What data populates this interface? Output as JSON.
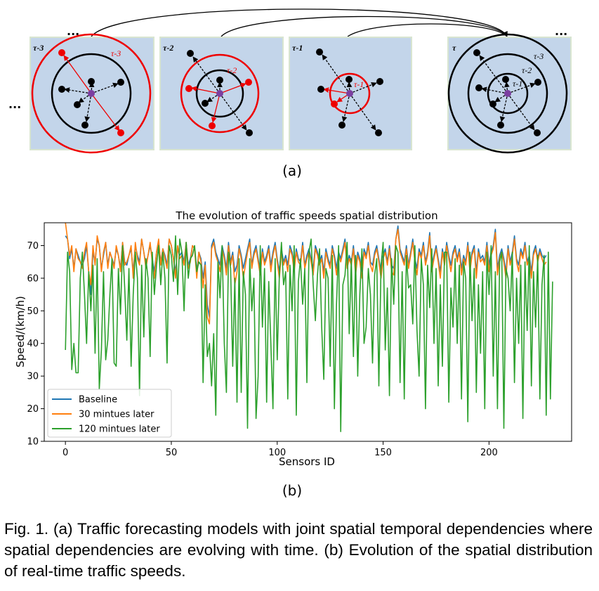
{
  "figure_a": {
    "panel_labels": [
      "τ-3",
      "τ-2",
      "τ-1",
      "τ"
    ],
    "circle_labels": [
      "τ-3",
      "τ-2",
      "τ-1"
    ],
    "ellipsis": "...",
    "sublabel": "(a)"
  },
  "chart_data": {
    "type": "line",
    "title": "The evolution of traffic speeds spatial distribution",
    "xlabel": "Sensors ID",
    "ylabel": "Speed/(km/h)",
    "xlim": [
      -10,
      239
    ],
    "ylim": [
      10,
      77
    ],
    "xticks": [
      0,
      50,
      100,
      150,
      200
    ],
    "yticks": [
      10,
      20,
      30,
      40,
      50,
      60,
      70
    ],
    "legend_position": "lower-left",
    "grid": false,
    "series": [
      {
        "name": "Baseline",
        "color": "#1f77b4",
        "values": [
          73,
          72,
          66,
          69,
          63,
          69,
          67,
          65,
          64,
          66,
          70,
          62,
          55,
          68,
          65,
          72,
          70,
          63,
          67,
          71,
          64,
          68,
          66,
          64,
          69,
          67,
          63,
          71,
          65,
          64,
          67,
          69,
          62,
          70,
          67,
          65,
          72,
          68,
          64,
          67,
          70,
          66,
          62,
          68,
          71,
          65,
          69,
          67,
          64,
          72,
          70,
          66,
          62,
          69,
          67,
          68,
          65,
          71,
          64,
          66,
          70,
          69,
          62,
          68,
          66,
          60,
          65,
          52,
          48,
          70,
          72,
          68,
          66,
          64,
          70,
          67,
          63,
          71,
          65,
          68,
          62,
          64,
          70,
          67,
          63,
          66,
          69,
          72,
          64,
          68,
          70,
          66,
          62,
          69,
          65,
          67,
          70,
          64,
          68,
          71,
          66,
          62,
          69,
          65,
          67,
          64,
          70,
          68,
          63,
          69,
          66,
          65,
          71,
          64,
          67,
          69,
          66,
          63,
          70,
          68,
          65,
          67,
          62,
          69,
          66,
          64,
          70,
          67,
          63,
          68,
          66,
          69,
          72,
          64,
          67,
          65,
          70,
          63,
          68,
          66,
          62,
          69,
          67,
          71,
          65,
          64,
          68,
          70,
          66,
          62,
          67,
          69,
          65,
          70,
          64,
          63,
          72,
          76,
          69,
          67,
          65,
          70,
          64,
          68,
          72,
          66,
          63,
          69,
          67,
          71,
          65,
          68,
          74,
          64,
          67,
          70,
          66,
          62,
          69,
          65,
          71,
          67,
          64,
          68,
          70,
          66,
          69,
          63,
          67,
          65,
          71,
          64,
          68,
          70,
          62,
          69,
          66,
          67,
          65,
          71,
          64,
          68,
          70,
          75,
          63,
          67,
          69,
          66,
          62,
          70,
          65,
          68,
          73,
          66,
          64,
          69,
          67,
          71,
          65,
          67,
          62,
          68,
          70,
          66,
          69,
          67,
          66,
          67
        ]
      },
      {
        "name": "30 mintues later",
        "color": "#ff7f0e",
        "values": [
          77,
          72,
          67,
          70,
          62,
          69,
          66,
          65,
          63,
          68,
          71,
          62,
          58,
          70,
          64,
          73,
          70,
          62,
          68,
          71,
          63,
          68,
          66,
          63,
          70,
          67,
          62,
          71,
          64,
          65,
          67,
          70,
          60,
          71,
          66,
          64,
          72,
          68,
          63,
          67,
          71,
          65,
          60,
          68,
          72,
          64,
          69,
          66,
          63,
          72,
          70,
          66,
          60,
          70,
          66,
          67,
          64,
          71,
          63,
          65,
          70,
          69,
          60,
          68,
          65,
          57,
          64,
          48,
          46,
          69,
          71,
          67,
          65,
          62,
          69,
          66,
          61,
          70,
          64,
          67,
          58,
          62,
          69,
          66,
          60,
          64,
          68,
          71,
          63,
          67,
          69,
          65,
          61,
          68,
          64,
          66,
          69,
          62,
          67,
          70,
          65,
          60,
          68,
          64,
          66,
          62,
          69,
          67,
          62,
          68,
          65,
          64,
          70,
          63,
          66,
          68,
          65,
          61,
          69,
          67,
          64,
          66,
          60,
          68,
          65,
          63,
          69,
          66,
          61,
          67,
          65,
          68,
          71,
          63,
          66,
          64,
          69,
          61,
          67,
          65,
          60,
          68,
          66,
          70,
          64,
          62,
          67,
          69,
          65,
          60,
          66,
          68,
          64,
          69,
          62,
          61,
          72,
          75,
          68,
          66,
          64,
          69,
          63,
          67,
          71,
          65,
          61,
          68,
          66,
          70,
          64,
          67,
          73,
          62,
          66,
          69,
          65,
          60,
          68,
          64,
          70,
          66,
          62,
          67,
          69,
          65,
          68,
          61,
          66,
          64,
          70,
          62,
          67,
          69,
          60,
          68,
          65,
          66,
          64,
          70,
          62,
          67,
          69,
          74,
          61,
          66,
          68,
          65,
          60,
          69,
          64,
          67,
          72,
          65,
          62,
          68,
          66,
          70,
          64,
          66,
          60,
          67,
          69,
          65,
          68,
          66,
          64,
          65
        ]
      },
      {
        "name": "120 mintues later",
        "color": "#2ca02c",
        "values": [
          38,
          68,
          62,
          32,
          40,
          31,
          31,
          60,
          68,
          55,
          40,
          62,
          50,
          64,
          37,
          66,
          26,
          38,
          62,
          35,
          41,
          55,
          66,
          34,
          33,
          63,
          49,
          70,
          57,
          41,
          63,
          33,
          55,
          68,
          60,
          24,
          64,
          42,
          66,
          60,
          36,
          68,
          55,
          64,
          70,
          58,
          68,
          60,
          34,
          70,
          67,
          59,
          73,
          55,
          72,
          68,
          50,
          71,
          60,
          66,
          67,
          70,
          62,
          65,
          64,
          28,
          58,
          36,
          40,
          27,
          43,
          18,
          65,
          54,
          70,
          40,
          25,
          68,
          63,
          33,
          60,
          22,
          66,
          25,
          62,
          55,
          14,
          66,
          50,
          60,
          17,
          30,
          70,
          45,
          63,
          22,
          59,
          40,
          20,
          66,
          35,
          61,
          71,
          58,
          62,
          23,
          64,
          50,
          70,
          18,
          59,
          66,
          52,
          63,
          28,
          68,
          72,
          58,
          47,
          61,
          69,
          45,
          29,
          63,
          60,
          33,
          67,
          20,
          52,
          70,
          13,
          58,
          61,
          71,
          43,
          66,
          36,
          67,
          30,
          55,
          69,
          40,
          45,
          63,
          55,
          34,
          61,
          66,
          27,
          64,
          71,
          38,
          57,
          24,
          66,
          52,
          70,
          68,
          28,
          62,
          23,
          67,
          57,
          58,
          46,
          70,
          44,
          30,
          66,
          58,
          20,
          64,
          51,
          69,
          40,
          63,
          27,
          58,
          33,
          68,
          68,
          22,
          57,
          45,
          66,
          40,
          64,
          23,
          65,
          60,
          16,
          68,
          47,
          63,
          25,
          58,
          37,
          62,
          20,
          68,
          55,
          70,
          30,
          62,
          20,
          65,
          68,
          14,
          63,
          60,
          50,
          68,
          28,
          60,
          40,
          64,
          17,
          65,
          44,
          70,
          27,
          62,
          45,
          67,
          23,
          58,
          67,
          18,
          68,
          23,
          59
        ]
      }
    ]
  },
  "figure_b": {
    "sublabel": "(b)"
  },
  "caption": "Fig. 1. (a) Traffic forecasting models with joint spatial temporal dependencies where spatial dependencies are evolving with time. (b) Evolution of the spatial distribution of real-time traffic speeds."
}
